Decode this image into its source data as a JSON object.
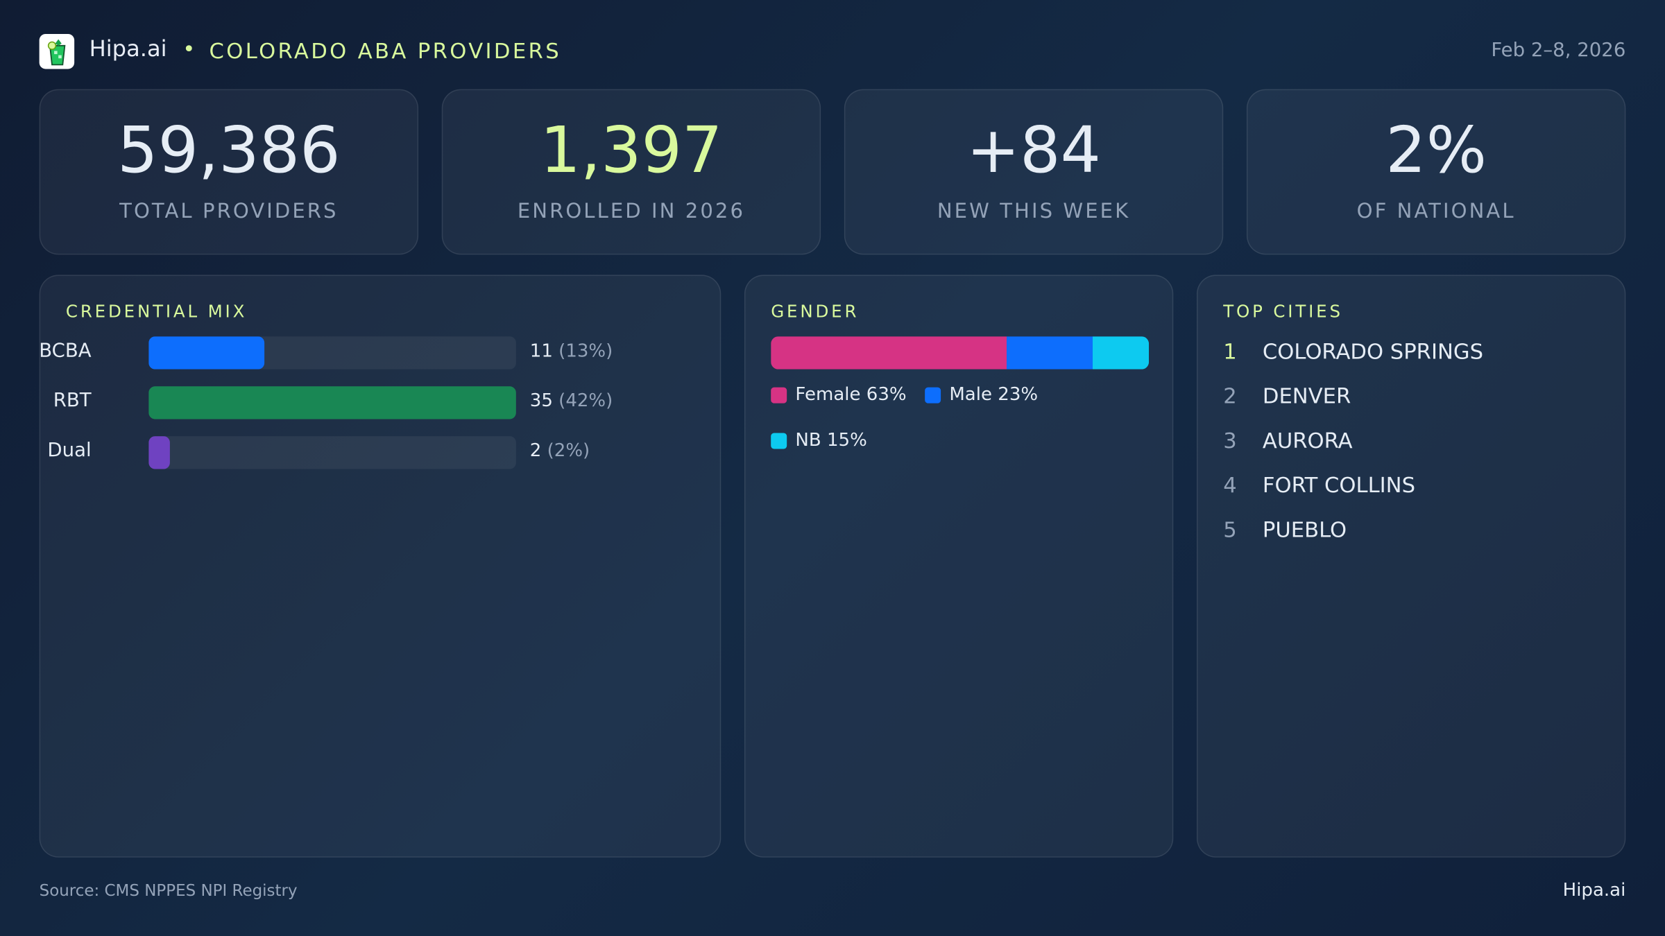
{
  "header": {
    "brand": "Hipa.ai",
    "separator": "•",
    "title": "COLORADO ABA PROVIDERS",
    "date": "Feb 2–8, 2026",
    "logo_icon": "mojito-glass-icon"
  },
  "kpis": [
    {
      "value": "59,386",
      "label": "TOTAL PROVIDERS",
      "color": "#ffffff"
    },
    {
      "value": "1,397",
      "label": "ENROLLED IN 2026",
      "color": "#d9f99d"
    },
    {
      "value": "+84",
      "label": "NEW THIS WEEK",
      "color": "#ffffff"
    },
    {
      "value": "2%",
      "label": "OF NATIONAL",
      "color": "#ffffff"
    }
  ],
  "credential_mix": {
    "title": "CREDENTIAL MIX",
    "rows": [
      {
        "label": "BCBA",
        "count": "11",
        "pct": "(13%)",
        "value": 11,
        "color": "#0d6efd"
      },
      {
        "label": "RBT",
        "count": "35",
        "pct": "(42%)",
        "value": 35,
        "color": "#198754"
      },
      {
        "label": "Dual",
        "count": "2",
        "pct": "(2%)",
        "value": 2,
        "color": "#6f42c1"
      }
    ]
  },
  "gender": {
    "title": "GENDER",
    "segments": [
      {
        "label": "Female 63%",
        "value": 63,
        "color": "#d63384"
      },
      {
        "label": "Male 23%",
        "value": 23,
        "color": "#0d6efd"
      },
      {
        "label": "NB 15%",
        "value": 15,
        "color": "#0dcaf0"
      }
    ]
  },
  "top_cities": {
    "title": "TOP CITIES",
    "items": [
      {
        "rank": "1",
        "name": "COLORADO SPRINGS"
      },
      {
        "rank": "2",
        "name": "DENVER"
      },
      {
        "rank": "3",
        "name": "AURORA"
      },
      {
        "rank": "4",
        "name": "FORT COLLINS"
      },
      {
        "rank": "5",
        "name": "PUEBLO"
      }
    ]
  },
  "footer": {
    "source": "Source: CMS NPPES NPI Registry",
    "brand": "Hipa.ai"
  }
}
